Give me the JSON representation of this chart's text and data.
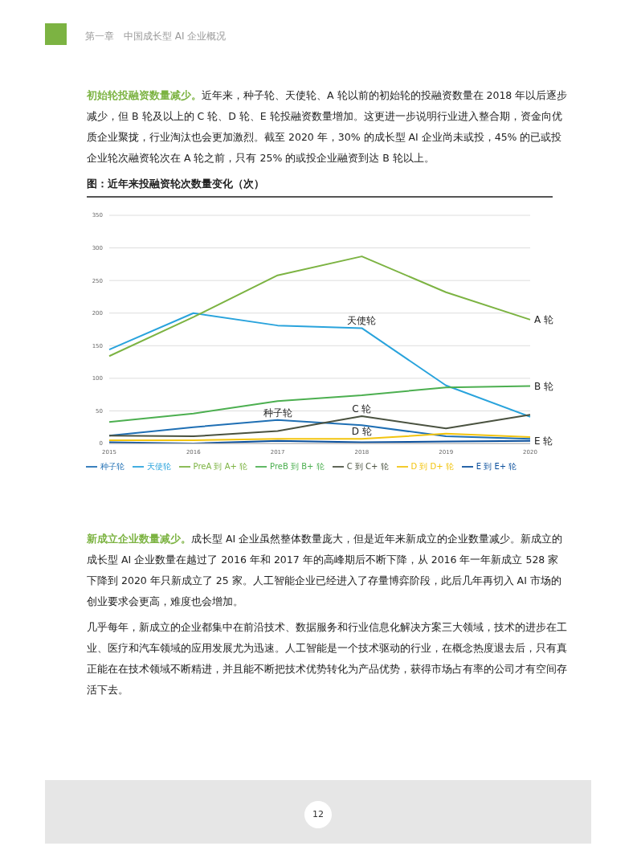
{
  "chart_data": {
    "type": "line",
    "title": "图：近年来投融资轮次数量变化（次）",
    "categories": [
      "2015",
      "2016",
      "2017",
      "2018",
      "2019",
      "2020"
    ],
    "series": [
      {
        "name": "种子轮",
        "color": "#1f6fb4",
        "values": [
          12,
          25,
          36,
          28,
          11,
          7
        ]
      },
      {
        "name": "天使轮",
        "color": "#29a3dc",
        "values": [
          144,
          200,
          181,
          177,
          89,
          41
        ]
      },
      {
        "name": "PreA 到 A+ 轮",
        "color": "#7cb342",
        "values": [
          134,
          194,
          258,
          287,
          232,
          190
        ]
      },
      {
        "name": "PreB 到 B+ 轮",
        "color": "#4caf50",
        "values": [
          33,
          46,
          65,
          74,
          86,
          88
        ]
      },
      {
        "name": "C 到 C+ 轮",
        "color": "#4a5240",
        "values": [
          12,
          11,
          19,
          42,
          23,
          44
        ]
      },
      {
        "name": "D 到 D+ 轮",
        "color": "#f2c40f",
        "values": [
          5,
          5,
          7,
          7,
          15,
          10
        ]
      },
      {
        "name": "E 到 E+ 轮",
        "color": "#0a4f9c",
        "values": [
          2,
          0,
          4,
          2,
          3,
          4
        ]
      }
    ],
    "ylim": [
      0,
      350
    ],
    "yticks": [
      0,
      50,
      100,
      150,
      200,
      250,
      300,
      350
    ],
    "grid": "y",
    "legend": "bottom",
    "marker": "none",
    "line_style": "solid",
    "annotations": [
      "第一章　中国成长型 AI 企业概况",
      "初始轮投融资数量减少。",
      "近年来，种子轮、天使轮、A 轮以前的初始轮的投融资数量在 2018 年以后逐步减少，但 B 轮及以上的 C 轮、D 轮、E 轮投融资数量增加。这更进一步说明行业进入整合期，资金向优质企业聚拢，行业淘汰也会更加激烈。截至 2020 年，30% 的成长型 AI 企业尚未或投，45% 的已或投企业轮次融资轮次在 A 轮之前，只有 25% 的或投企业融资到达 B 轮以上。",
      "新成立企业数量减少。",
      "成长型 AI 企业虽然整体数量庞大，但是近年来新成立的企业数量减少。新成立的成长型 AI 企业数量在越过了 2016 年和 2017 年的高峰期后不断下降，从 2016 年一年新成立 528 家下降到 2020 年只新成立了 25 家。人工智能企业已经进入了存量博弈阶段，此后几年再切入 AI 市场的创业要求会更高，难度也会增加。",
      "几乎每年，新成立的企业都集中在前沿技术、数据服务和行业信息化解决方案三大领域，技术的进步在工业、医疗和汽车领域的应用发展尤为迅速。人工智能是一个技术驱动的行业，在概念热度退去后，只有真正能在在技术领域不断精进，并且能不断把技术优势转化为产品优势，获得市场占有率的公司才有空间存活下去。",
      "12",
      {
        "text": "天使轮",
        "x": "2018",
        "y": 177
      },
      {
        "text": "A 轮",
        "x": "2020",
        "y": 190
      },
      {
        "text": "B 轮",
        "x": "2020",
        "y": 88
      },
      {
        "text": "种子轮",
        "x": "2017",
        "y": 36
      },
      {
        "text": "C 轮",
        "x": "2018",
        "y": 42
      },
      {
        "text": "D 轮",
        "x": "2018",
        "y": 7
      },
      {
        "text": "E 轮",
        "x": "2020",
        "y": 4
      }
    ]
  }
}
